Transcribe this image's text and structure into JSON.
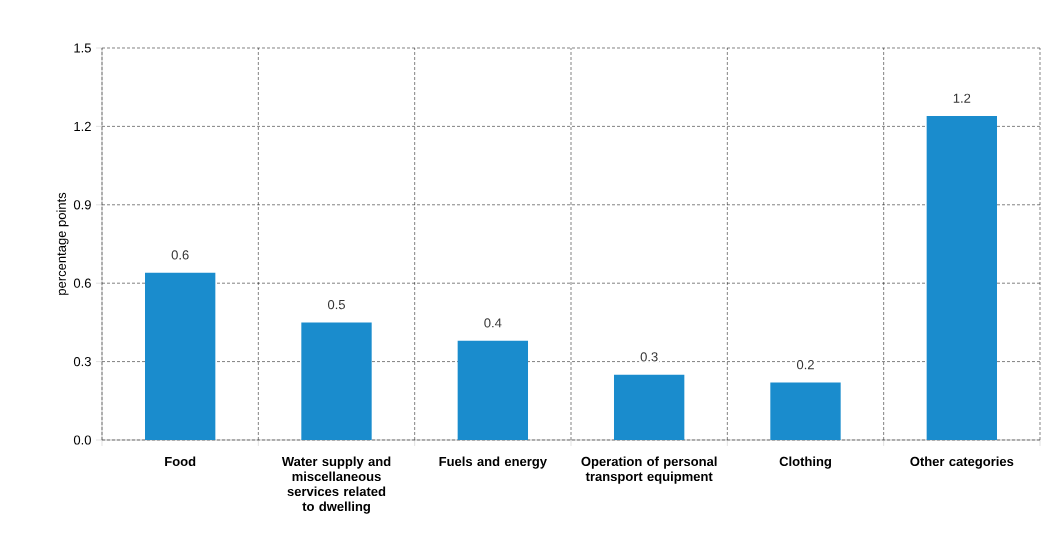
{
  "chart_data": {
    "type": "bar",
    "ylabel": "percentage points",
    "categories": [
      "Food",
      "Water supply and miscellaneous services related to dwelling",
      "Fuels and energy",
      "Operation of personal transport equipment",
      "Clothing",
      "Other categories"
    ],
    "values": [
      0.64,
      0.45,
      0.38,
      0.25,
      0.22,
      1.24
    ],
    "value_labels": [
      "0.6",
      "0.5",
      "0.4",
      "0.3",
      "0.2",
      "1.2"
    ],
    "color": "#1a8ccd",
    "ylim": [
      0,
      1.5
    ],
    "yticks": [
      {
        "value": 0,
        "label": "0.0"
      },
      0.3,
      0.6,
      0.9,
      1.2,
      1.5
    ],
    "grid": true
  }
}
